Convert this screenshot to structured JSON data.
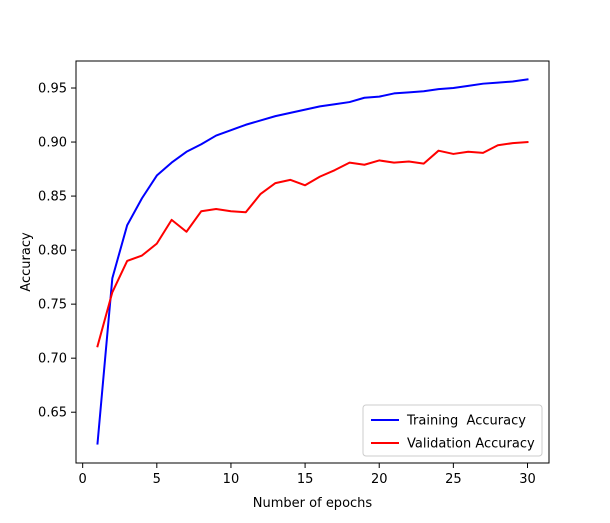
{
  "chart_data": {
    "type": "line",
    "title": "",
    "xlabel": "Number of epochs",
    "ylabel": "Accuracy",
    "xlim": [
      -0.45,
      31.45
    ],
    "ylim": [
      0.603,
      0.975
    ],
    "xticks": [
      0,
      5,
      10,
      15,
      20,
      25,
      30
    ],
    "yticks": [
      0.65,
      0.7,
      0.75,
      0.8,
      0.85,
      0.9,
      0.95
    ],
    "xtick_labels": [
      "0",
      "5",
      "10",
      "15",
      "20",
      "25",
      "30"
    ],
    "ytick_labels": [
      "0.65",
      "0.70",
      "0.75",
      "0.80",
      "0.85",
      "0.90",
      "0.95"
    ],
    "grid": false,
    "legend_position": "lower-right",
    "x": [
      1,
      2,
      3,
      4,
      5,
      6,
      7,
      8,
      9,
      10,
      11,
      12,
      13,
      14,
      15,
      16,
      17,
      18,
      19,
      20,
      21,
      22,
      23,
      24,
      25,
      26,
      27,
      28,
      29,
      30
    ],
    "series": [
      {
        "name": "Training  Accuracy",
        "color": "#0000ff",
        "values": [
          0.621,
          0.774,
          0.823,
          0.848,
          0.869,
          0.881,
          0.891,
          0.898,
          0.906,
          0.911,
          0.916,
          0.92,
          0.924,
          0.927,
          0.93,
          0.933,
          0.935,
          0.937,
          0.941,
          0.942,
          0.945,
          0.946,
          0.947,
          0.949,
          0.95,
          0.952,
          0.954,
          0.955,
          0.956,
          0.958
        ]
      },
      {
        "name": "Validation Accuracy",
        "color": "#ff0000",
        "values": [
          0.711,
          0.761,
          0.79,
          0.795,
          0.806,
          0.828,
          0.817,
          0.836,
          0.838,
          0.836,
          0.835,
          0.852,
          0.862,
          0.865,
          0.86,
          0.868,
          0.874,
          0.881,
          0.879,
          0.883,
          0.881,
          0.882,
          0.88,
          0.892,
          0.889,
          0.891,
          0.89,
          0.897,
          0.899,
          0.9
        ]
      }
    ]
  }
}
